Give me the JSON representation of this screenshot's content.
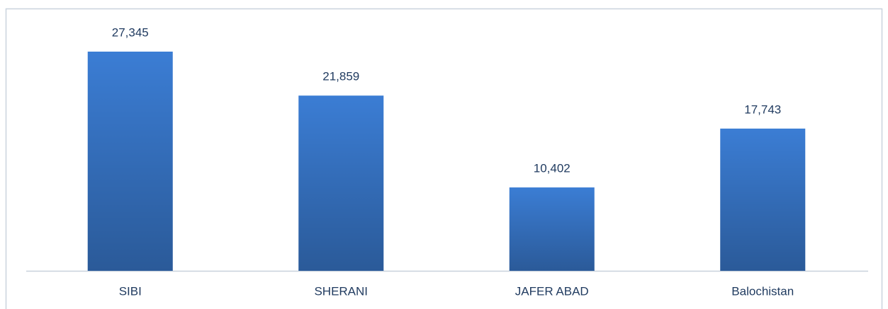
{
  "chart_data": {
    "type": "bar",
    "categories": [
      "SIBI",
      "SHERANI",
      "JAFER ABAD",
      "Balochistan"
    ],
    "values": [
      27345,
      21859,
      10402,
      17743
    ],
    "value_labels": [
      "27,345",
      "21,859",
      "10,402",
      "17,743"
    ],
    "color": "#3b7dd4"
  }
}
